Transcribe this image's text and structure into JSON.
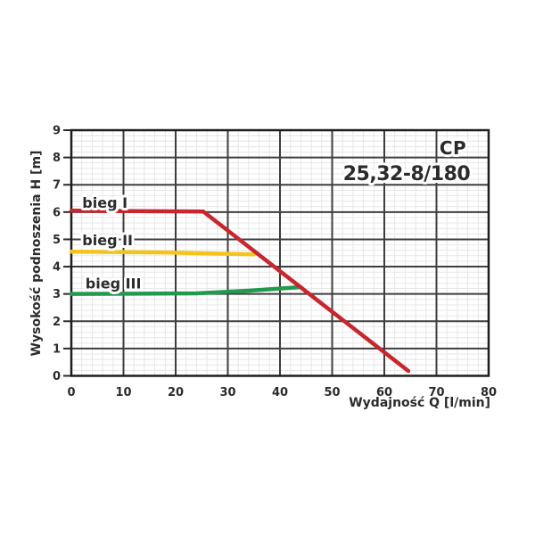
{
  "chart_data": {
    "type": "line",
    "title_line1": "CP",
    "title_line2": "25,32-8/180",
    "xlabel": "Wydajność Q [l/min]",
    "ylabel": "Wysokość podnoszenia H [m]",
    "xlim": [
      0,
      80
    ],
    "ylim": [
      0,
      9
    ],
    "x_ticks": [
      0,
      10,
      20,
      30,
      40,
      50,
      60,
      70,
      80
    ],
    "y_ticks": [
      0,
      1,
      2,
      3,
      4,
      5,
      6,
      7,
      8,
      9
    ],
    "x_minor_step": 2,
    "y_minor_step": 0.2,
    "grid": "major+minor",
    "legend_position": "inline-labels-left",
    "series": [
      {
        "name": "bieg I",
        "color": "#c8262e",
        "points": [
          [
            0,
            6.05
          ],
          [
            25.3,
            6.02
          ],
          [
            64.6,
            0.18
          ]
        ],
        "label_pos": [
          2.1,
          6.16
        ]
      },
      {
        "name": "bieg II",
        "color": "#f5c41c",
        "points": [
          [
            0,
            4.55
          ],
          [
            18,
            4.52
          ],
          [
            35,
            4.45
          ]
        ],
        "label_pos": [
          2.1,
          4.79
        ]
      },
      {
        "name": "bieg III",
        "color": "#229a4e",
        "points": [
          [
            0,
            3.0
          ],
          [
            24,
            3.02
          ],
          [
            34,
            3.12
          ],
          [
            44,
            3.25
          ]
        ],
        "label_pos": [
          2.7,
          3.2
        ]
      }
    ],
    "colors": {
      "background": "#ffffff",
      "grid_major": "#3e3e3e",
      "grid_minor": "#e4e4e4",
      "frame": "#1d1d1d",
      "text": "#2b2b2b"
    }
  }
}
